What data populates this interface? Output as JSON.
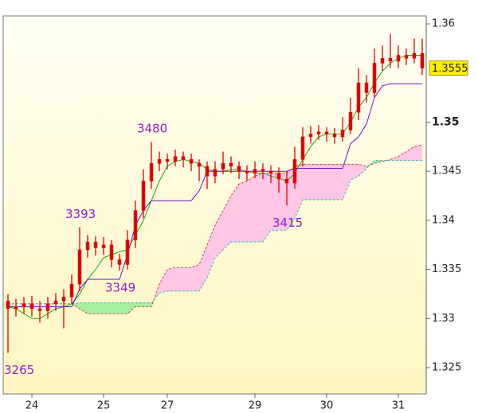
{
  "chart_data": {
    "type": "candlestick",
    "open": [
      1.3318,
      1.331,
      1.3312,
      1.3315,
      1.331,
      1.3308,
      1.3315,
      1.3318,
      1.3322,
      1.3335,
      1.337,
      1.3378,
      1.3372,
      1.3375,
      1.336,
      1.3355,
      1.338,
      1.341,
      1.344,
      1.3458,
      1.3462,
      1.346,
      1.3465,
      1.3462,
      1.3458,
      1.3455,
      1.3445,
      1.3452,
      1.3458,
      1.3455,
      1.345,
      1.3448,
      1.3452,
      1.345,
      1.3448,
      1.3442,
      1.3438,
      1.3462,
      1.3485,
      1.3488,
      1.349,
      1.3488,
      1.3485,
      1.3492,
      1.351,
      1.354,
      1.353,
      1.356,
      1.3565,
      1.3562,
      1.3568,
      1.3565,
      1.357
    ],
    "high": [
      1.3325,
      1.332,
      1.3322,
      1.3323,
      1.3318,
      1.3322,
      1.3326,
      1.333,
      1.3345,
      1.3393,
      1.3385,
      1.3384,
      1.3383,
      1.338,
      1.3366,
      1.339,
      1.342,
      1.3452,
      1.348,
      1.347,
      1.3468,
      1.3472,
      1.347,
      1.3468,
      1.3462,
      1.346,
      1.346,
      1.347,
      1.3465,
      1.346,
      1.3456,
      1.346,
      1.3458,
      1.3456,
      1.3454,
      1.345,
      1.3475,
      1.3495,
      1.3496,
      1.3497,
      1.3495,
      1.3494,
      1.3505,
      1.3525,
      1.3555,
      1.3548,
      1.3575,
      1.3578,
      1.359,
      1.3578,
      1.3575,
      1.3585,
      1.3585
    ],
    "low": [
      1.3265,
      1.3302,
      1.3305,
      1.3302,
      1.3296,
      1.33,
      1.3308,
      1.329,
      1.3315,
      1.3328,
      1.3362,
      1.3364,
      1.3365,
      1.3352,
      1.3349,
      1.335,
      1.3372,
      1.3402,
      1.3432,
      1.345,
      1.3452,
      1.3455,
      1.3454,
      1.345,
      1.344,
      1.3432,
      1.3438,
      1.3447,
      1.3448,
      1.3442,
      1.344,
      1.3443,
      1.3442,
      1.3438,
      1.3428,
      1.3415,
      1.3432,
      1.3455,
      1.3478,
      1.3482,
      1.348,
      1.3478,
      1.348,
      1.3488,
      1.3502,
      1.352,
      1.3525,
      1.3552,
      1.3555,
      1.3555,
      1.3558,
      1.356,
      1.3548
    ],
    "close": [
      1.331,
      1.3312,
      1.3315,
      1.331,
      1.3308,
      1.3315,
      1.3318,
      1.3322,
      1.3335,
      1.337,
      1.3378,
      1.3372,
      1.3375,
      1.336,
      1.3355,
      1.338,
      1.341,
      1.344,
      1.3458,
      1.3462,
      1.346,
      1.3465,
      1.3462,
      1.3458,
      1.3455,
      1.3445,
      1.3452,
      1.3458,
      1.3455,
      1.345,
      1.3448,
      1.3452,
      1.345,
      1.3448,
      1.3442,
      1.3438,
      1.3462,
      1.3485,
      1.3488,
      1.349,
      1.3488,
      1.3485,
      1.3492,
      1.351,
      1.354,
      1.353,
      1.356,
      1.3565,
      1.3562,
      1.3568,
      1.3565,
      1.357,
      1.3555
    ],
    "candle_color": "#e00000",
    "lines": [
      {
        "color": "#10b010",
        "values": [
          1.3312,
          1.331,
          1.3305,
          1.33,
          1.33,
          1.3305,
          1.331,
          1.3312,
          1.3315,
          1.3325,
          1.334,
          1.335,
          1.3362,
          1.3365,
          1.3368,
          1.337,
          1.3385,
          1.34,
          1.342,
          1.344,
          1.3455,
          1.346,
          1.3462,
          1.346,
          1.3458,
          1.3452,
          1.345,
          1.345,
          1.3452,
          1.3452,
          1.345,
          1.3448,
          1.3448,
          1.3445,
          1.3443,
          1.344,
          1.3448,
          1.3462,
          1.3475,
          1.3485,
          1.3488,
          1.3488,
          1.3488,
          1.35,
          1.3515,
          1.3525,
          1.354,
          1.3552,
          1.356,
          1.3565,
          1.3568,
          1.3568,
          1.3568
        ]
      },
      {
        "color": "#6a10c8",
        "values": [
          1.3312,
          1.3312,
          1.3312,
          1.3312,
          1.3312,
          1.3312,
          1.3312,
          1.3312,
          1.3312,
          1.333,
          1.334,
          1.334,
          1.334,
          1.334,
          1.334,
          1.3365,
          1.3395,
          1.341,
          1.342,
          1.342,
          1.342,
          1.342,
          1.342,
          1.342,
          1.343,
          1.345,
          1.345,
          1.345,
          1.345,
          1.345,
          1.345,
          1.345,
          1.345,
          1.345,
          1.345,
          1.345,
          1.3453,
          1.3453,
          1.3453,
          1.3453,
          1.3453,
          1.3453,
          1.3453,
          1.3478,
          1.3485,
          1.3498,
          1.3525,
          1.3537,
          1.3539,
          1.3539,
          1.3539,
          1.3539,
          1.3539
        ]
      }
    ],
    "cloud": {
      "span_a": {
        "color": "#c04848",
        "values": [
          1.3315,
          1.3315,
          1.3315,
          1.3315,
          1.3315,
          1.3315,
          1.3315,
          1.3315,
          1.3315,
          1.331,
          1.3305,
          1.3305,
          1.3305,
          1.3305,
          1.3305,
          1.3305,
          1.3312,
          1.3312,
          1.3312,
          1.3335,
          1.335,
          1.3352,
          1.3352,
          1.3352,
          1.3355,
          1.3375,
          1.3395,
          1.341,
          1.3425,
          1.3437,
          1.344,
          1.3445,
          1.3448,
          1.3448,
          1.3448,
          1.3448,
          1.3455,
          1.3457,
          1.3457,
          1.3457,
          1.3457,
          1.3457,
          1.3457,
          1.3457,
          1.3457,
          1.3455,
          1.3458,
          1.346,
          1.3462,
          1.3465,
          1.347,
          1.3475,
          1.3477
        ]
      },
      "span_b": {
        "color": "#30b8c8",
        "values": [
          1.3315,
          1.3315,
          1.3315,
          1.3315,
          1.3315,
          1.3315,
          1.3315,
          1.3315,
          1.3315,
          1.3316,
          1.3316,
          1.3316,
          1.3316,
          1.3316,
          1.3316,
          1.3316,
          1.3316,
          1.3316,
          1.3316,
          1.3326,
          1.3328,
          1.3328,
          1.3328,
          1.3328,
          1.3328,
          1.3342,
          1.3362,
          1.337,
          1.3378,
          1.3378,
          1.3378,
          1.3378,
          1.3378,
          1.339,
          1.339,
          1.339,
          1.3402,
          1.3421,
          1.3421,
          1.3421,
          1.3421,
          1.3421,
          1.3421,
          1.3441,
          1.3445,
          1.3453,
          1.3461,
          1.3461,
          1.3461,
          1.3461,
          1.3461,
          1.3461,
          1.3461
        ]
      },
      "fill_up": "#ffc6e6",
      "fill_down": "#a6f0a0"
    },
    "xlim": [
      -0.5,
      52.5
    ],
    "xticks": [
      {
        "value": 3,
        "label": "24"
      },
      {
        "value": 12,
        "label": "25"
      },
      {
        "value": 20,
        "label": "27"
      },
      {
        "value": 31,
        "label": "29"
      },
      {
        "value": 40,
        "label": "30"
      },
      {
        "value": 49,
        "label": "31"
      }
    ],
    "ylim": [
      1.32233,
      1.36065
    ],
    "yticks": [
      1.325,
      1.33,
      1.335,
      1.34,
      1.345,
      1.35,
      1.36
    ],
    "emphasized_ytick": 1.35,
    "last_price_color": "#ffee00",
    "annotations": [
      {
        "text": "3265",
        "x": 0,
        "y": 1.3265
      },
      {
        "text": "3393",
        "x": 9,
        "y": 1.3393
      },
      {
        "text": "3349",
        "x": 14,
        "y": 1.3349
      },
      {
        "text": "3480",
        "x": 18,
        "y": 1.348
      },
      {
        "text": "3415",
        "x": 35,
        "y": 1.3415
      }
    ]
  }
}
